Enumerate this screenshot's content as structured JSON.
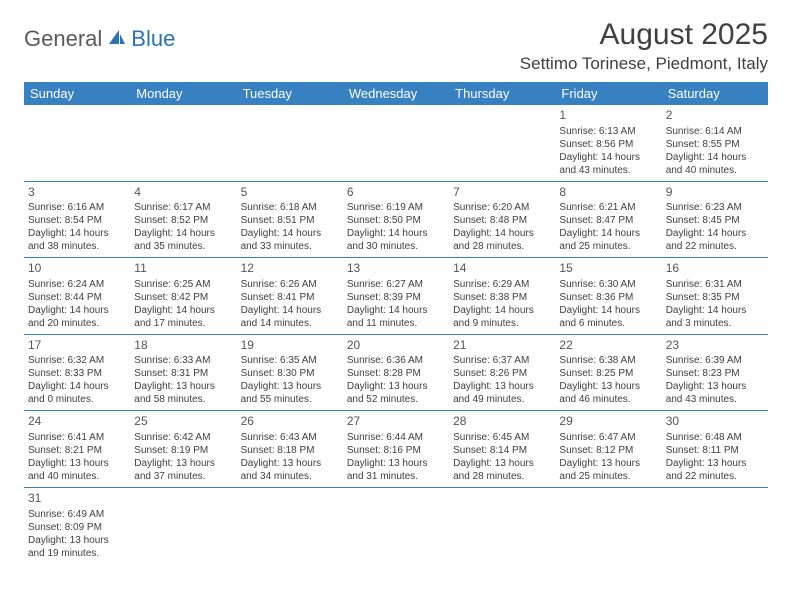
{
  "logo": {
    "general": "General",
    "blue": "Blue"
  },
  "title": "August 2025",
  "location": "Settimo Torinese, Piedmont, Italy",
  "colors": {
    "header_bg": "#3781c2",
    "header_text": "#ffffff",
    "border": "#3781c2",
    "text": "#404040",
    "logo_blue": "#2a71b8",
    "logo_gray": "#5a5a5a",
    "background": "#ffffff"
  },
  "calendar": {
    "day_names": [
      "Sunday",
      "Monday",
      "Tuesday",
      "Wednesday",
      "Thursday",
      "Friday",
      "Saturday"
    ],
    "columns": 7,
    "cell_fontsize": 10,
    "header_fontsize": 13,
    "daynum_fontsize": 12,
    "weeks": [
      [
        null,
        null,
        null,
        null,
        null,
        {
          "day": "1",
          "sunrise": "Sunrise: 6:13 AM",
          "sunset": "Sunset: 8:56 PM",
          "daylight": "Daylight: 14 hours and 43 minutes."
        },
        {
          "day": "2",
          "sunrise": "Sunrise: 6:14 AM",
          "sunset": "Sunset: 8:55 PM",
          "daylight": "Daylight: 14 hours and 40 minutes."
        }
      ],
      [
        {
          "day": "3",
          "sunrise": "Sunrise: 6:16 AM",
          "sunset": "Sunset: 8:54 PM",
          "daylight": "Daylight: 14 hours and 38 minutes."
        },
        {
          "day": "4",
          "sunrise": "Sunrise: 6:17 AM",
          "sunset": "Sunset: 8:52 PM",
          "daylight": "Daylight: 14 hours and 35 minutes."
        },
        {
          "day": "5",
          "sunrise": "Sunrise: 6:18 AM",
          "sunset": "Sunset: 8:51 PM",
          "daylight": "Daylight: 14 hours and 33 minutes."
        },
        {
          "day": "6",
          "sunrise": "Sunrise: 6:19 AM",
          "sunset": "Sunset: 8:50 PM",
          "daylight": "Daylight: 14 hours and 30 minutes."
        },
        {
          "day": "7",
          "sunrise": "Sunrise: 6:20 AM",
          "sunset": "Sunset: 8:48 PM",
          "daylight": "Daylight: 14 hours and 28 minutes."
        },
        {
          "day": "8",
          "sunrise": "Sunrise: 6:21 AM",
          "sunset": "Sunset: 8:47 PM",
          "daylight": "Daylight: 14 hours and 25 minutes."
        },
        {
          "day": "9",
          "sunrise": "Sunrise: 6:23 AM",
          "sunset": "Sunset: 8:45 PM",
          "daylight": "Daylight: 14 hours and 22 minutes."
        }
      ],
      [
        {
          "day": "10",
          "sunrise": "Sunrise: 6:24 AM",
          "sunset": "Sunset: 8:44 PM",
          "daylight": "Daylight: 14 hours and 20 minutes."
        },
        {
          "day": "11",
          "sunrise": "Sunrise: 6:25 AM",
          "sunset": "Sunset: 8:42 PM",
          "daylight": "Daylight: 14 hours and 17 minutes."
        },
        {
          "day": "12",
          "sunrise": "Sunrise: 6:26 AM",
          "sunset": "Sunset: 8:41 PM",
          "daylight": "Daylight: 14 hours and 14 minutes."
        },
        {
          "day": "13",
          "sunrise": "Sunrise: 6:27 AM",
          "sunset": "Sunset: 8:39 PM",
          "daylight": "Daylight: 14 hours and 11 minutes."
        },
        {
          "day": "14",
          "sunrise": "Sunrise: 6:29 AM",
          "sunset": "Sunset: 8:38 PM",
          "daylight": "Daylight: 14 hours and 9 minutes."
        },
        {
          "day": "15",
          "sunrise": "Sunrise: 6:30 AM",
          "sunset": "Sunset: 8:36 PM",
          "daylight": "Daylight: 14 hours and 6 minutes."
        },
        {
          "day": "16",
          "sunrise": "Sunrise: 6:31 AM",
          "sunset": "Sunset: 8:35 PM",
          "daylight": "Daylight: 14 hours and 3 minutes."
        }
      ],
      [
        {
          "day": "17",
          "sunrise": "Sunrise: 6:32 AM",
          "sunset": "Sunset: 8:33 PM",
          "daylight": "Daylight: 14 hours and 0 minutes."
        },
        {
          "day": "18",
          "sunrise": "Sunrise: 6:33 AM",
          "sunset": "Sunset: 8:31 PM",
          "daylight": "Daylight: 13 hours and 58 minutes."
        },
        {
          "day": "19",
          "sunrise": "Sunrise: 6:35 AM",
          "sunset": "Sunset: 8:30 PM",
          "daylight": "Daylight: 13 hours and 55 minutes."
        },
        {
          "day": "20",
          "sunrise": "Sunrise: 6:36 AM",
          "sunset": "Sunset: 8:28 PM",
          "daylight": "Daylight: 13 hours and 52 minutes."
        },
        {
          "day": "21",
          "sunrise": "Sunrise: 6:37 AM",
          "sunset": "Sunset: 8:26 PM",
          "daylight": "Daylight: 13 hours and 49 minutes."
        },
        {
          "day": "22",
          "sunrise": "Sunrise: 6:38 AM",
          "sunset": "Sunset: 8:25 PM",
          "daylight": "Daylight: 13 hours and 46 minutes."
        },
        {
          "day": "23",
          "sunrise": "Sunrise: 6:39 AM",
          "sunset": "Sunset: 8:23 PM",
          "daylight": "Daylight: 13 hours and 43 minutes."
        }
      ],
      [
        {
          "day": "24",
          "sunrise": "Sunrise: 6:41 AM",
          "sunset": "Sunset: 8:21 PM",
          "daylight": "Daylight: 13 hours and 40 minutes."
        },
        {
          "day": "25",
          "sunrise": "Sunrise: 6:42 AM",
          "sunset": "Sunset: 8:19 PM",
          "daylight": "Daylight: 13 hours and 37 minutes."
        },
        {
          "day": "26",
          "sunrise": "Sunrise: 6:43 AM",
          "sunset": "Sunset: 8:18 PM",
          "daylight": "Daylight: 13 hours and 34 minutes."
        },
        {
          "day": "27",
          "sunrise": "Sunrise: 6:44 AM",
          "sunset": "Sunset: 8:16 PM",
          "daylight": "Daylight: 13 hours and 31 minutes."
        },
        {
          "day": "28",
          "sunrise": "Sunrise: 6:45 AM",
          "sunset": "Sunset: 8:14 PM",
          "daylight": "Daylight: 13 hours and 28 minutes."
        },
        {
          "day": "29",
          "sunrise": "Sunrise: 6:47 AM",
          "sunset": "Sunset: 8:12 PM",
          "daylight": "Daylight: 13 hours and 25 minutes."
        },
        {
          "day": "30",
          "sunrise": "Sunrise: 6:48 AM",
          "sunset": "Sunset: 8:11 PM",
          "daylight": "Daylight: 13 hours and 22 minutes."
        }
      ],
      [
        {
          "day": "31",
          "sunrise": "Sunrise: 6:49 AM",
          "sunset": "Sunset: 8:09 PM",
          "daylight": "Daylight: 13 hours and 19 minutes."
        },
        null,
        null,
        null,
        null,
        null,
        null
      ]
    ]
  }
}
